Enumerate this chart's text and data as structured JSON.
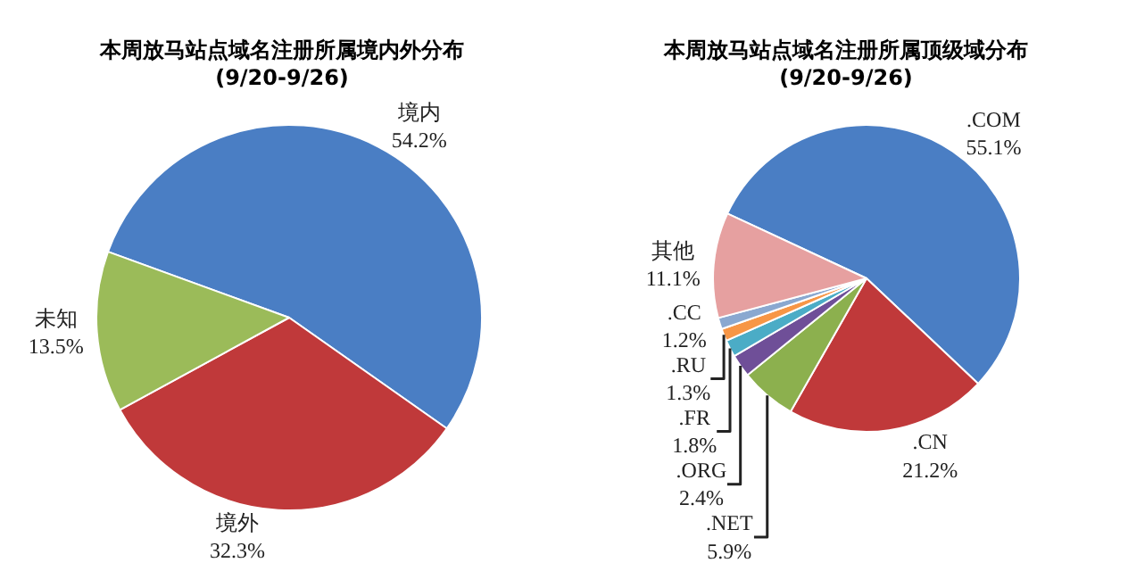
{
  "chart_data": [
    {
      "type": "pie",
      "title": "本周放马站点域名注册所属境内外分布",
      "subtitle": "(9/20-9/26)",
      "categories": [
        "境内",
        "境外",
        "未知"
      ],
      "values": [
        54.2,
        32.3,
        13.5
      ],
      "value_labels": [
        "54.2%",
        "32.3%",
        "13.5%"
      ],
      "colors": [
        "#4a7ec4",
        "#c0393a",
        "#9bbb59"
      ]
    },
    {
      "type": "pie",
      "title": "本周放马站点域名注册所属顶级域分布",
      "subtitle": "(9/20-9/26)",
      "categories": [
        ".COM",
        ".CN",
        ".NET",
        ".ORG",
        ".FR",
        ".RU",
        ".CC",
        "其他"
      ],
      "values": [
        55.1,
        21.2,
        5.9,
        2.4,
        1.8,
        1.3,
        1.2,
        11.1
      ],
      "value_labels": [
        "55.1%",
        "21.2%",
        "5.9%",
        "2.4%",
        "1.8%",
        "1.3%",
        "1.2%",
        "11.1%"
      ],
      "colors": [
        "#4a7ec4",
        "#c0393a",
        "#8cb04e",
        "#6f4f98",
        "#4bacc6",
        "#f79646",
        "#8aa8d0",
        "#e6a0a0"
      ]
    }
  ]
}
